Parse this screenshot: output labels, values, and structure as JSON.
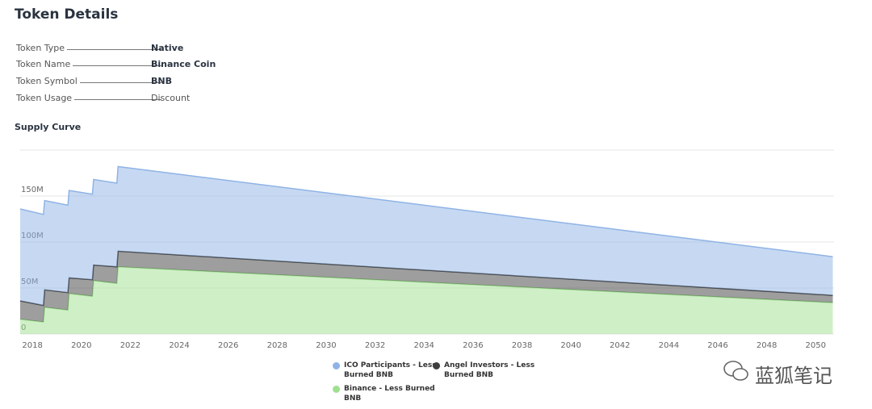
{
  "header": {
    "title": "Token Details"
  },
  "details": [
    {
      "label": "Token Type",
      "value": "Native"
    },
    {
      "label": "Token Name",
      "value": "Binance Coin"
    },
    {
      "label": "Token Symbol",
      "value": "BNB"
    },
    {
      "label": "Token Usage",
      "value": "Discount"
    }
  ],
  "watermark": "蓝狐笔记",
  "chart_data": {
    "type": "area",
    "stacked": true,
    "title": "Supply Curve",
    "x": [
      2017.5,
      2018.45,
      2018.5,
      2019.45,
      2019.5,
      2020.45,
      2020.5,
      2021.45,
      2021.5,
      2050.7
    ],
    "xlim": [
      2017.5,
      2050.75
    ],
    "xticks": [
      2018,
      2020,
      2022,
      2024,
      2026,
      2028,
      2030,
      2032,
      2034,
      2036,
      2038,
      2040,
      2042,
      2044,
      2046,
      2048,
      2050
    ],
    "ylim": [
      0,
      200000000
    ],
    "yticks": [
      0,
      {
        "value": 50000000,
        "label": "50M"
      },
      {
        "value": 100000000,
        "label": "100M"
      },
      {
        "value": 150000000,
        "label": "150M"
      }
    ],
    "grid": true,
    "series": [
      {
        "name": "ICO Participants - Less Burned BNB",
        "color": "#8fb3e6",
        "values": [
          100000000,
          99000000,
          97000000,
          95000000,
          95000000,
          93000000,
          93000000,
          91000000,
          92000000,
          42000000
        ]
      },
      {
        "name": "Angel Investors - Less Burned BNB",
        "color": "#3d3d3d",
        "values": [
          20000000,
          18000000,
          19000000,
          19000000,
          17000000,
          18000000,
          17000000,
          18000000,
          17000000,
          8000000
        ]
      },
      {
        "name": "Binance - Less Burned BNB",
        "color": "#9fe08f",
        "values": [
          16000000,
          13000000,
          29000000,
          26000000,
          44000000,
          41000000,
          58000000,
          55000000,
          73000000,
          34000000
        ]
      }
    ]
  }
}
